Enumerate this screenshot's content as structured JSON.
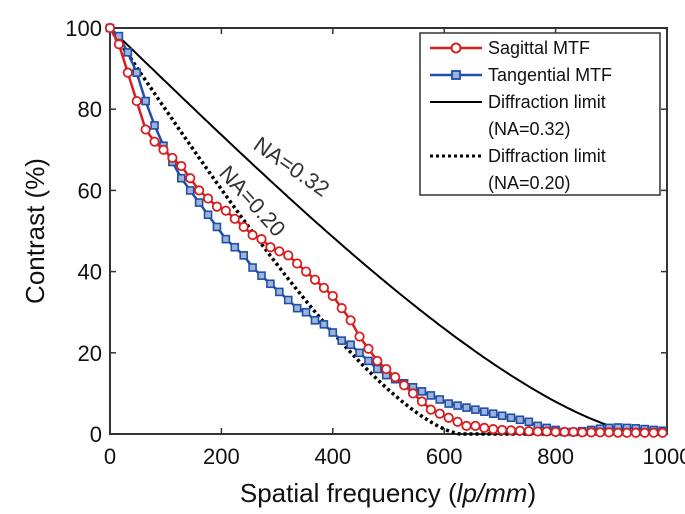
{
  "chart_data": {
    "type": "line",
    "title": "",
    "xlabel": "Spatial frequency",
    "xlabel_unit": "lp/mm",
    "ylabel": "Contrast (%)",
    "xlim": [
      0,
      1000
    ],
    "ylim": [
      0,
      100
    ],
    "xticks": [
      0,
      200,
      400,
      600,
      800,
      1000
    ],
    "yticks": [
      0,
      20,
      40,
      60,
      80,
      100
    ],
    "grid": false,
    "legend_position": "top-right",
    "series": [
      {
        "name": "Sagittal MTF",
        "color": "#d81e1e",
        "marker": "circle",
        "x": [
          0,
          16,
          32,
          48,
          64,
          80,
          96,
          112,
          128,
          144,
          160,
          176,
          192,
          208,
          224,
          240,
          256,
          272,
          288,
          304,
          320,
          336,
          352,
          368,
          384,
          400,
          416,
          432,
          448,
          464,
          480,
          496,
          512,
          528,
          544,
          560,
          576,
          592,
          608,
          624,
          640,
          656,
          672,
          688,
          704,
          720,
          736,
          752,
          768,
          784,
          800,
          816,
          832,
          848,
          864,
          880,
          896,
          912,
          928,
          944,
          960,
          976,
          992
        ],
        "values": [
          100,
          96,
          89,
          82,
          75,
          72,
          70,
          68,
          66,
          63,
          60,
          58,
          56,
          55,
          53,
          51,
          49,
          48,
          46,
          45,
          44,
          42,
          40,
          38,
          36,
          34,
          31,
          28,
          24,
          21,
          18,
          16,
          14,
          12,
          10,
          8,
          6,
          5,
          4,
          3,
          2,
          2,
          1.5,
          1.2,
          1,
          0.9,
          0.8,
          0.7,
          0.6,
          0.6,
          0.5,
          0.5,
          0.5,
          0.4,
          0.4,
          0.4,
          0.4,
          0.3,
          0.3,
          0.3,
          0.3,
          0.3,
          0.3
        ]
      },
      {
        "name": "Tangential MTF",
        "color": "#1f4fa8",
        "marker": "square",
        "x": [
          0,
          16,
          32,
          48,
          64,
          80,
          96,
          112,
          128,
          144,
          160,
          176,
          192,
          208,
          224,
          240,
          256,
          272,
          288,
          304,
          320,
          336,
          352,
          368,
          384,
          400,
          416,
          432,
          448,
          464,
          480,
          496,
          512,
          528,
          544,
          560,
          576,
          592,
          608,
          624,
          640,
          656,
          672,
          688,
          704,
          720,
          736,
          752,
          768,
          784,
          800,
          816,
          832,
          848,
          864,
          880,
          896,
          912,
          928,
          944,
          960,
          976,
          992
        ],
        "values": [
          100,
          98,
          94,
          89,
          82,
          76,
          71,
          67,
          63,
          60,
          57,
          54,
          51,
          48,
          46,
          44,
          41,
          39,
          37,
          35,
          33,
          31,
          30,
          28,
          27,
          25,
          23,
          22,
          20,
          18,
          16,
          14.5,
          13.5,
          12.5,
          11.5,
          10.5,
          9.5,
          8.5,
          7.5,
          7,
          6.5,
          6,
          5.5,
          5,
          4.5,
          4,
          3.5,
          3,
          2,
          1.5,
          1,
          0.5,
          0.5,
          0.7,
          1,
          1.3,
          1.5,
          1.6,
          1.5,
          1.4,
          1.2,
          1,
          0.8
        ]
      },
      {
        "name": "Diffraction limit",
        "name_line2": "(NA=0.32)",
        "color": "#000000",
        "style": "solid",
        "cutoff": 960
      },
      {
        "name": "Diffraction limit",
        "name_line2": "(NA=0.20)",
        "color": "#000000",
        "style": "dotted",
        "cutoff": 630
      }
    ],
    "annotations": [
      {
        "text": "NA=0.32"
      },
      {
        "text": "NA=0.20"
      }
    ]
  }
}
